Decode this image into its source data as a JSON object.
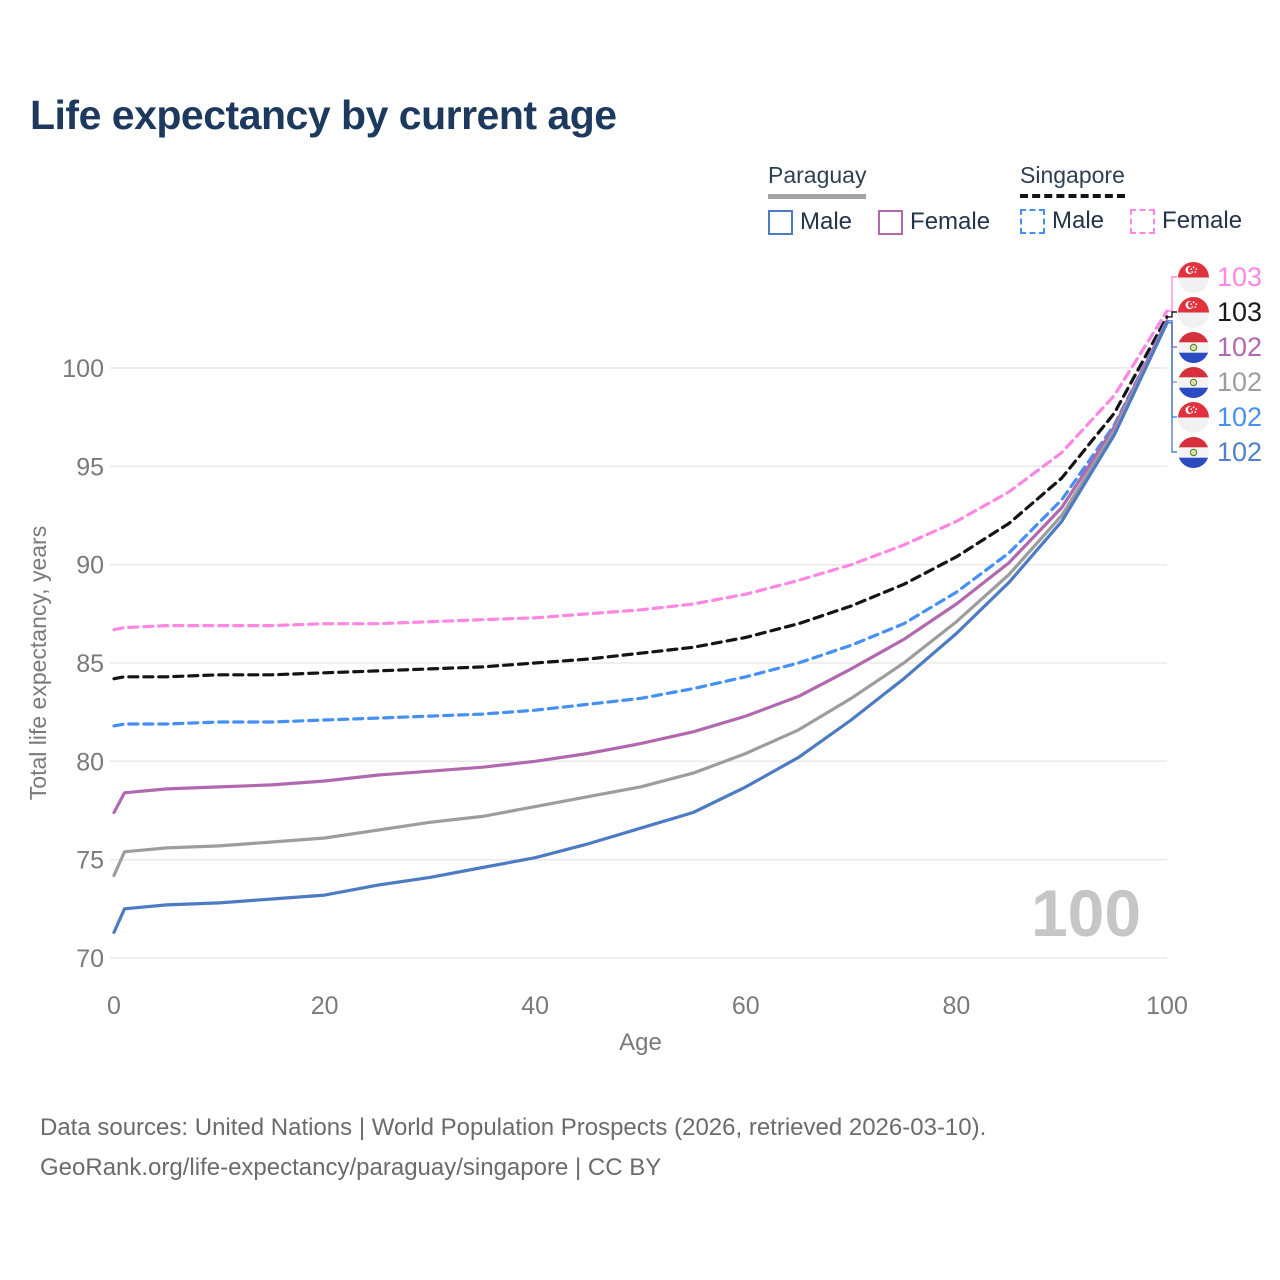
{
  "title": "Life expectancy by current age",
  "legend": {
    "groups": [
      {
        "name": "Paraguay",
        "line_style": "solid",
        "underline_color": "#a3a3a3",
        "items": [
          {
            "label": "Male",
            "color": "#4c7bc4"
          },
          {
            "label": "Female",
            "color": "#b268ae"
          }
        ]
      },
      {
        "name": "Singapore",
        "line_style": "dashed",
        "underline_color": "#141414",
        "items": [
          {
            "label": "Male",
            "color": "#4490f7"
          },
          {
            "label": "Female",
            "color": "#ff87e4"
          }
        ]
      }
    ]
  },
  "chart_data": {
    "type": "line",
    "xlabel": "Age",
    "ylabel": "Total life expectancy, years",
    "x_ticks": [
      0,
      20,
      40,
      60,
      80,
      100
    ],
    "y_ticks": [
      70,
      75,
      80,
      85,
      90,
      95,
      100
    ],
    "xlim": [
      0,
      100
    ],
    "ylim": [
      69,
      104.5
    ],
    "grid": "horizontal",
    "grid_color": "#eaeaea",
    "tick_color": "#7a7a7a",
    "ages": [
      0,
      1,
      5,
      10,
      15,
      20,
      25,
      30,
      35,
      40,
      45,
      50,
      55,
      60,
      65,
      70,
      75,
      80,
      85,
      90,
      95,
      100
    ],
    "series": [
      {
        "id": "sg-female",
        "name": "Singapore Female",
        "color": "#ff87e4",
        "dashed": true,
        "values": [
          86.7,
          86.8,
          86.9,
          86.9,
          86.9,
          87.0,
          87.0,
          87.1,
          87.2,
          87.3,
          87.5,
          87.7,
          88.0,
          88.5,
          89.2,
          90.0,
          91.0,
          92.2,
          93.7,
          95.7,
          98.6,
          102.9
        ]
      },
      {
        "id": "sg-total",
        "name": "Singapore",
        "color": "#141414",
        "dashed": true,
        "values": [
          84.2,
          84.3,
          84.3,
          84.4,
          84.4,
          84.5,
          84.6,
          84.7,
          84.8,
          85.0,
          85.2,
          85.5,
          85.8,
          86.3,
          87.0,
          87.9,
          89.0,
          90.4,
          92.1,
          94.4,
          97.7,
          102.6
        ]
      },
      {
        "id": "sg-male",
        "name": "Singapore Male",
        "color": "#4490f7",
        "dashed": true,
        "values": [
          81.8,
          81.9,
          81.9,
          82.0,
          82.0,
          82.1,
          82.2,
          82.3,
          82.4,
          82.6,
          82.9,
          83.2,
          83.7,
          84.3,
          85.0,
          85.9,
          87.0,
          88.6,
          90.6,
          93.3,
          97.1,
          102.4
        ]
      },
      {
        "id": "py-female",
        "name": "Paraguay Female",
        "color": "#b268ae",
        "dashed": false,
        "values": [
          77.4,
          78.4,
          78.6,
          78.7,
          78.8,
          79.0,
          79.3,
          79.5,
          79.7,
          80.0,
          80.4,
          80.9,
          81.5,
          82.3,
          83.3,
          84.7,
          86.2,
          88.0,
          90.1,
          92.9,
          97.0,
          102.4
        ]
      },
      {
        "id": "py-total",
        "name": "Paraguay",
        "color": "#9d9d9d",
        "dashed": false,
        "values": [
          74.2,
          75.4,
          75.6,
          75.7,
          75.9,
          76.1,
          76.5,
          76.9,
          77.2,
          77.7,
          78.2,
          78.7,
          79.4,
          80.4,
          81.6,
          83.2,
          85.0,
          87.1,
          89.5,
          92.5,
          96.8,
          102.3
        ]
      },
      {
        "id": "py-male",
        "name": "Paraguay Male",
        "color": "#4c7bc4",
        "dashed": false,
        "values": [
          71.3,
          72.5,
          72.7,
          72.8,
          73.0,
          73.2,
          73.7,
          74.1,
          74.6,
          75.1,
          75.8,
          76.6,
          77.4,
          78.7,
          80.2,
          82.1,
          84.2,
          86.5,
          89.1,
          92.2,
          96.6,
          102.3
        ]
      }
    ]
  },
  "end_labels": [
    {
      "series": "sg-female",
      "value": "103",
      "color": "#ff87e4",
      "flag": "singapore"
    },
    {
      "series": "sg-total",
      "value": "103",
      "color": "#1a1a1a",
      "flag": "singapore"
    },
    {
      "series": "py-female",
      "value": "102",
      "color": "#b268ae",
      "flag": "paraguay"
    },
    {
      "series": "py-total",
      "value": "102",
      "color": "#9d9d9d",
      "flag": "paraguay"
    },
    {
      "series": "sg-male",
      "value": "102",
      "color": "#4a90f4",
      "flag": "singapore"
    },
    {
      "series": "py-male",
      "value": "102",
      "color": "#5380c9",
      "flag": "paraguay"
    }
  ],
  "watermark": {
    "text": "100",
    "color": "#c6c6c6"
  },
  "footer": {
    "line1": "Data sources: United Nations | World Population Prospects (2026, retrieved 2026-03-10).",
    "line2": "GeoRank.org/life-expectancy/paraguay/singapore | CC BY"
  }
}
